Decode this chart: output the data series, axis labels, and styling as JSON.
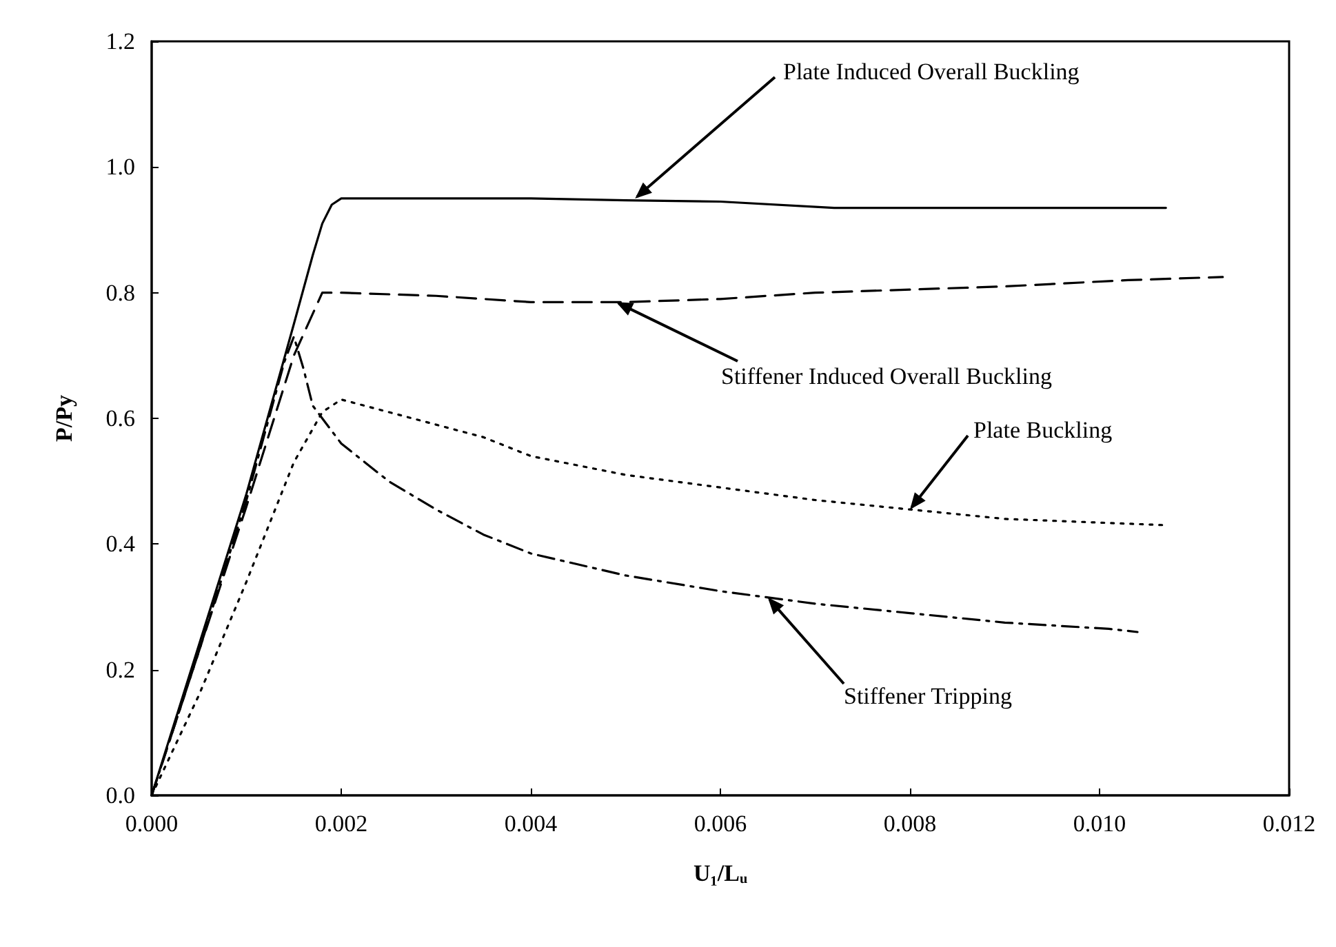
{
  "chart_data": {
    "type": "line",
    "xlabel": "U₁/Lᵤ",
    "ylabel": "P/Py",
    "xlim": [
      0,
      0.012
    ],
    "xticks": [
      {
        "value": 0,
        "label": "0.000"
      },
      {
        "value": 0.002,
        "label": "0.002"
      },
      {
        "value": 0.004,
        "label": "0.004"
      },
      {
        "value": 0.006,
        "label": "0.006"
      },
      {
        "value": 0.008,
        "label": "0.008"
      },
      {
        "value": 0.01,
        "label": "0.010"
      },
      {
        "value": 0.012,
        "label": "0.012"
      }
    ],
    "ylim": [
      0,
      1.2
    ],
    "yticks": [
      {
        "value": 0,
        "label": "0.0"
      },
      {
        "value": 0.2,
        "label": "0.2"
      },
      {
        "value": 0.4,
        "label": "0.4"
      },
      {
        "value": 0.6,
        "label": "0.6"
      },
      {
        "value": 0.8,
        "label": "0.8"
      },
      {
        "value": 1,
        "label": "1.0"
      },
      {
        "value": 1.2,
        "label": "1.2"
      }
    ],
    "grid": false,
    "marker": "none",
    "series": [
      {
        "color": "#000000",
        "line_style": "solid",
        "x": [
          0,
          0.0005,
          0.001,
          0.0015,
          0.0017,
          0.0018,
          0.0019,
          0.002,
          0.003,
          0.004,
          0.005,
          0.006,
          0.0072,
          0.009,
          0.0107
        ],
        "values": [
          0,
          0.24,
          0.48,
          0.75,
          0.86,
          0.91,
          0.94,
          0.95,
          0.95,
          0.95,
          0.947,
          0.945,
          0.935,
          0.935,
          0.935
        ]
      },
      {
        "color": "#000000",
        "line_style": "dashed",
        "x": [
          0,
          0.0005,
          0.001,
          0.0015,
          0.0018,
          0.002,
          0.003,
          0.004,
          0.005,
          0.006,
          0.007,
          0.008,
          0.009,
          0.0103,
          0.0113
        ],
        "values": [
          0,
          0.23,
          0.46,
          0.7,
          0.8,
          0.8,
          0.795,
          0.785,
          0.785,
          0.79,
          0.8,
          0.805,
          0.81,
          0.82,
          0.825
        ]
      },
      {
        "color": "#000000",
        "line_style": "dotted",
        "x": [
          0,
          0.0005,
          0.001,
          0.0015,
          0.0018,
          0.002,
          0.0025,
          0.003,
          0.0035,
          0.004,
          0.005,
          0.006,
          0.007,
          0.008,
          0.009,
          0.0107
        ],
        "values": [
          0,
          0.16,
          0.34,
          0.53,
          0.61,
          0.63,
          0.61,
          0.59,
          0.57,
          0.54,
          0.51,
          0.49,
          0.47,
          0.455,
          0.44,
          0.43
        ]
      },
      {
        "color": "#000000",
        "line_style": "dashdot",
        "x": [
          0,
          0.0005,
          0.001,
          0.0014,
          0.0015,
          0.0016,
          0.0017,
          0.002,
          0.0025,
          0.003,
          0.0035,
          0.004,
          0.005,
          0.006,
          0.007,
          0.008,
          0.009,
          0.0101,
          0.0104
        ],
        "values": [
          0,
          0.23,
          0.47,
          0.69,
          0.73,
          0.68,
          0.62,
          0.56,
          0.5,
          0.455,
          0.415,
          0.385,
          0.35,
          0.325,
          0.305,
          0.29,
          0.275,
          0.265,
          0.26
        ]
      }
    ],
    "annotations": [
      {
        "text": "Plate Induced Overall Buckling",
        "x": 0.0051,
        "y": 0.95
      },
      {
        "text": "Stiffener Induced Overall Buckling",
        "x": 0.0049,
        "y": 0.785
      },
      {
        "text": "Plate Buckling",
        "x": 0.008,
        "y": 0.455
      },
      {
        "text": "Stiffener Tripping",
        "x": 0.0065,
        "y": 0.315
      }
    ]
  }
}
